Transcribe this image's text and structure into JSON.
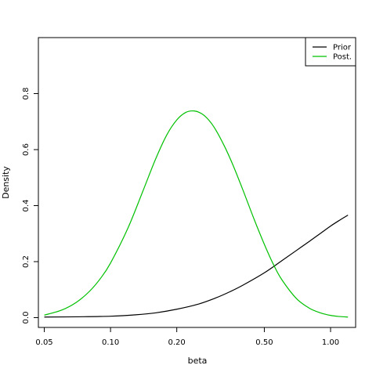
{
  "chart_data": {
    "type": "line",
    "title": "",
    "xlabel": "beta",
    "ylabel": "Density",
    "x_scale": "log",
    "xlim": [
      0.047,
      1.3
    ],
    "ylim": [
      -0.035,
      1.0
    ],
    "x_ticks": [
      {
        "value": 0.05,
        "label": "0.05"
      },
      {
        "value": 0.1,
        "label": "0.10"
      },
      {
        "value": 0.2,
        "label": "0.20"
      },
      {
        "value": 0.5,
        "label": "0.50"
      },
      {
        "value": 1.0,
        "label": "1.00"
      }
    ],
    "y_ticks": [
      {
        "value": 0.0,
        "label": "0.0"
      },
      {
        "value": 0.2,
        "label": "0.2"
      },
      {
        "value": 0.4,
        "label": "0.4"
      },
      {
        "value": 0.6,
        "label": "0.6"
      },
      {
        "value": 0.8,
        "label": "0.8"
      }
    ],
    "grid": false,
    "legend_position": "top-right",
    "series": [
      {
        "name": "Prior",
        "color": "#000000",
        "x": [
          0.05,
          0.07,
          0.1,
          0.13,
          0.16,
          0.2,
          0.25,
          0.3,
          0.35,
          0.4,
          0.5,
          0.6,
          0.7,
          0.8,
          0.9,
          1.0,
          1.1,
          1.2
        ],
        "y": [
          0.002,
          0.003,
          0.005,
          0.01,
          0.017,
          0.03,
          0.048,
          0.07,
          0.093,
          0.116,
          0.16,
          0.203,
          0.24,
          0.272,
          0.301,
          0.327,
          0.348,
          0.366
        ]
      },
      {
        "name": "Post.",
        "color": "#00c000",
        "x": [
          0.05,
          0.06,
          0.07,
          0.08,
          0.09,
          0.1,
          0.12,
          0.14,
          0.16,
          0.18,
          0.2,
          0.22,
          0.24,
          0.26,
          0.28,
          0.3,
          0.33,
          0.36,
          0.4,
          0.45,
          0.5,
          0.55,
          0.6,
          0.7,
          0.8,
          0.9,
          1.0,
          1.1,
          1.2
        ],
        "y": [
          0.009,
          0.027,
          0.055,
          0.093,
          0.14,
          0.195,
          0.32,
          0.45,
          0.565,
          0.652,
          0.706,
          0.733,
          0.738,
          0.728,
          0.705,
          0.672,
          0.611,
          0.545,
          0.455,
          0.35,
          0.262,
          0.19,
          0.136,
          0.068,
          0.034,
          0.017,
          0.008,
          0.004,
          0.002
        ]
      }
    ]
  }
}
